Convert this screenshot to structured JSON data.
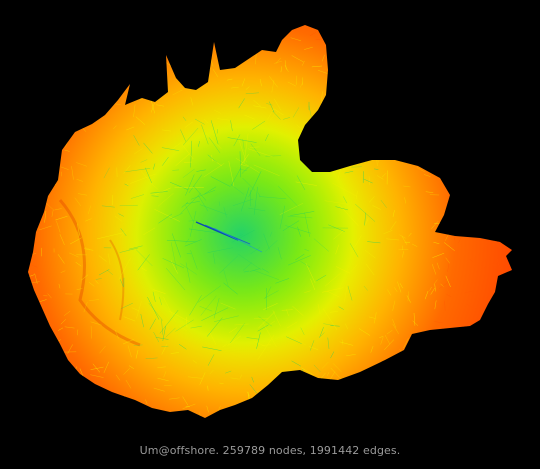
{
  "figure": {
    "caption": "Um@offshore. 259789 nodes, 1991442 edges.",
    "colors": {
      "background": "#000000",
      "edge_far": "#ff5a00",
      "edge_mid": "#f6f200",
      "edge_core": "#22d060",
      "edge_hub": "#0a60c0",
      "caption_text": "#9a9a9a"
    }
  }
}
